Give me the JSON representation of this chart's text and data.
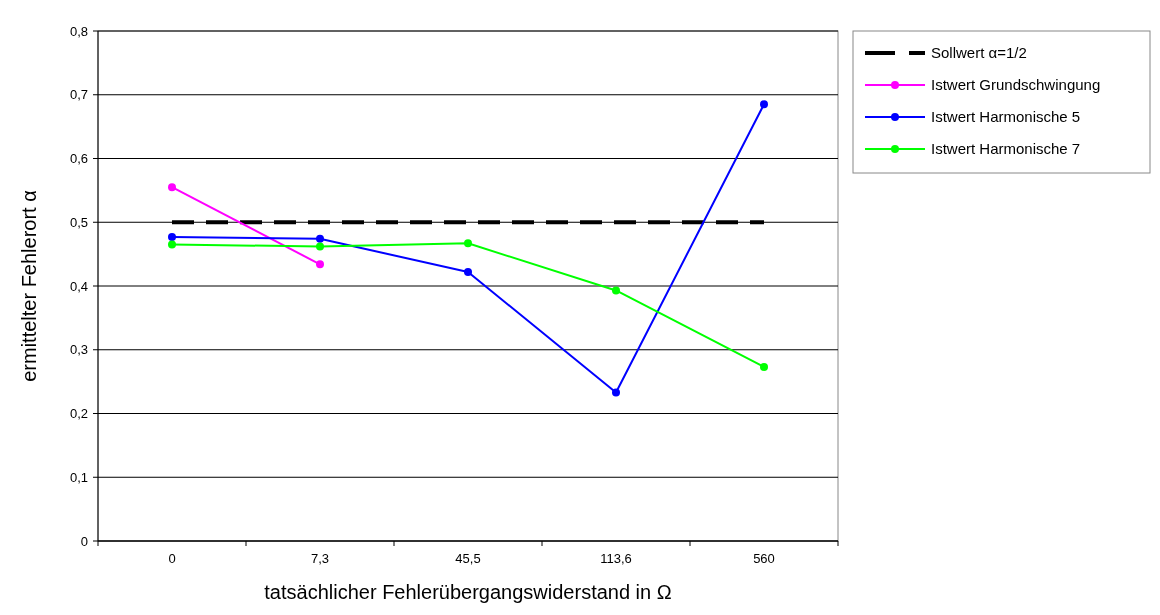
{
  "chart_data": {
    "type": "line",
    "xlabel": "tatsächlicher Fehlerübergangswiderstand in Ω",
    "ylabel": "ermittelter Fehlerort α",
    "categories": [
      "0",
      "7,3",
      "45,5",
      "113,6",
      "560"
    ],
    "ylim": [
      0,
      0.8
    ],
    "yticks": [
      {
        "value": 0,
        "label": "0"
      },
      {
        "value": 0.1,
        "label": "0,1"
      },
      {
        "value": 0.2,
        "label": "0,2"
      },
      {
        "value": 0.3,
        "label": "0,3"
      },
      {
        "value": 0.4,
        "label": "0,4"
      },
      {
        "value": 0.5,
        "label": "0,5"
      },
      {
        "value": 0.6,
        "label": "0,6"
      },
      {
        "value": 0.7,
        "label": "0,7"
      },
      {
        "value": 0.8,
        "label": "0,8"
      }
    ],
    "grid": "y",
    "legend": "right",
    "series": [
      {
        "name": "Sollwert  α=1/2",
        "color": "#000000",
        "line_style": "dashed",
        "marker": "none",
        "values": [
          0.5,
          0.5,
          0.5,
          0.5,
          0.5
        ]
      },
      {
        "name": "Istwert Grundschwingung",
        "color": "#ff00ff",
        "line_style": "solid",
        "marker": "circle",
        "values": [
          0.555,
          0.434,
          null,
          null,
          null
        ]
      },
      {
        "name": "Istwert Harmonische 5",
        "color": "#0000ff",
        "line_style": "solid",
        "marker": "circle",
        "values": [
          0.477,
          0.474,
          0.422,
          0.233,
          0.685
        ]
      },
      {
        "name": "Istwert Harmonische 7",
        "color": "#00ff00",
        "line_style": "solid",
        "marker": "circle",
        "values": [
          0.465,
          0.462,
          0.467,
          0.393,
          0.273
        ]
      }
    ]
  }
}
